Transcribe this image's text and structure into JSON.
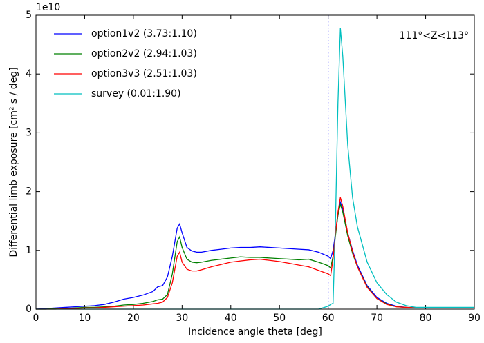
{
  "chart_data": {
    "type": "line",
    "xlabel": "Incidence angle theta [deg]",
    "ylabel": "Differential limb exposure [cm² s / deg]",
    "y_offset_label": "1e10",
    "annotation": "111°<Z<113°",
    "vline": {
      "x": 60,
      "color": "#0000ff"
    },
    "x": [
      0,
      2,
      4,
      6,
      8,
      10,
      12,
      14,
      16,
      18,
      20,
      22,
      24,
      25,
      26,
      27,
      28,
      29,
      29.5,
      30,
      31,
      32,
      33,
      34,
      36,
      38,
      40,
      42,
      44,
      46,
      48,
      50,
      52,
      54,
      56,
      58,
      60,
      60.5,
      61,
      61.5,
      62,
      62.5,
      63,
      64,
      65,
      66,
      68,
      70,
      72,
      74,
      76,
      78,
      80,
      85,
      90
    ],
    "series": [
      {
        "name": "option1v2 (3.73:1.10)",
        "color": "#0000ff",
        "values": [
          0,
          0.01,
          0.02,
          0.03,
          0.04,
          0.05,
          0.06,
          0.08,
          0.12,
          0.17,
          0.2,
          0.24,
          0.3,
          0.38,
          0.4,
          0.55,
          0.9,
          1.38,
          1.45,
          1.3,
          1.05,
          0.99,
          0.97,
          0.97,
          1.0,
          1.02,
          1.04,
          1.05,
          1.05,
          1.06,
          1.05,
          1.04,
          1.03,
          1.02,
          1.01,
          0.97,
          0.9,
          0.86,
          1.0,
          1.3,
          1.6,
          1.82,
          1.7,
          1.3,
          1.0,
          0.75,
          0.4,
          0.2,
          0.1,
          0.05,
          0.03,
          0.02,
          0.02,
          0.02,
          0.02
        ]
      },
      {
        "name": "option2v2 (2.94:1.03)",
        "color": "#008000",
        "values": [
          0,
          0,
          0.01,
          0.01,
          0.02,
          0.03,
          0.03,
          0.04,
          0.05,
          0.07,
          0.08,
          0.1,
          0.13,
          0.16,
          0.17,
          0.25,
          0.6,
          1.15,
          1.23,
          1.05,
          0.85,
          0.8,
          0.79,
          0.8,
          0.83,
          0.85,
          0.87,
          0.89,
          0.88,
          0.88,
          0.87,
          0.86,
          0.85,
          0.84,
          0.85,
          0.8,
          0.74,
          0.7,
          0.9,
          1.25,
          1.6,
          1.78,
          1.65,
          1.25,
          0.95,
          0.72,
          0.38,
          0.18,
          0.09,
          0.04,
          0.03,
          0.02,
          0.02,
          0.02,
          0.02
        ]
      },
      {
        "name": "option3v3 (2.51:1.03)",
        "color": "#ff0000",
        "values": [
          0,
          0,
          0,
          0.01,
          0.01,
          0.02,
          0.02,
          0.03,
          0.04,
          0.05,
          0.06,
          0.07,
          0.09,
          0.1,
          0.12,
          0.2,
          0.45,
          0.9,
          0.97,
          0.8,
          0.68,
          0.65,
          0.65,
          0.67,
          0.72,
          0.76,
          0.8,
          0.82,
          0.84,
          0.85,
          0.83,
          0.81,
          0.78,
          0.75,
          0.72,
          0.66,
          0.6,
          0.57,
          0.85,
          1.3,
          1.65,
          1.9,
          1.75,
          1.3,
          0.98,
          0.72,
          0.37,
          0.18,
          0.08,
          0.04,
          0.03,
          0.02,
          0.02,
          0.02,
          0.02
        ]
      },
      {
        "name": "survey (0.01:1.90)",
        "color": "#00bfbf",
        "values": [
          0,
          0,
          0,
          0,
          0,
          0,
          0,
          0,
          0,
          0,
          0,
          0,
          0,
          0,
          0,
          0,
          0,
          0,
          0,
          0,
          0,
          0,
          0,
          0,
          0,
          0,
          0,
          0,
          0,
          0,
          0,
          0,
          0,
          0,
          0,
          0,
          0.05,
          0.08,
          0.1,
          1.5,
          3.5,
          4.78,
          4.3,
          2.8,
          1.9,
          1.4,
          0.8,
          0.45,
          0.25,
          0.12,
          0.06,
          0.03,
          0.03,
          0.03,
          0.03
        ]
      }
    ],
    "xlim": [
      0,
      90
    ],
    "xticks": [
      0,
      10,
      20,
      30,
      40,
      50,
      60,
      70,
      80,
      90
    ],
    "ylim": [
      0,
      5
    ],
    "yticks": [
      0,
      1,
      2,
      3,
      4,
      5
    ],
    "legend": "upper left"
  }
}
